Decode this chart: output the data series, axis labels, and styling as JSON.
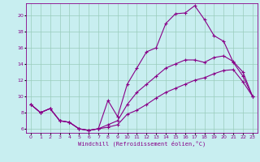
{
  "xlabel": "Windchill (Refroidissement éolien,°C)",
  "bg_color": "#c8eef0",
  "line_color": "#880088",
  "grid_color": "#99ccbb",
  "x_ticks": [
    0,
    1,
    2,
    3,
    4,
    5,
    6,
    7,
    8,
    9,
    10,
    11,
    12,
    13,
    14,
    15,
    16,
    17,
    18,
    19,
    20,
    21,
    22,
    23
  ],
  "y_ticks": [
    6,
    8,
    10,
    12,
    14,
    16,
    18,
    20
  ],
  "xlim": [
    -0.5,
    23.5
  ],
  "ylim": [
    5.5,
    21.5
  ],
  "line1_x": [
    0,
    1,
    2,
    3,
    4,
    5,
    6,
    7,
    8,
    9,
    10,
    11,
    12,
    13,
    14,
    15,
    16,
    17,
    18,
    19,
    20,
    21,
    22,
    23
  ],
  "line1_y": [
    9.0,
    8.0,
    8.5,
    7.0,
    6.8,
    6.0,
    5.8,
    6.0,
    9.5,
    7.5,
    11.5,
    13.5,
    15.5,
    16.0,
    19.0,
    20.2,
    20.3,
    21.2,
    19.5,
    17.5,
    16.8,
    14.2,
    12.5,
    10.0
  ],
  "line2_x": [
    0,
    1,
    2,
    3,
    4,
    5,
    6,
    7,
    8,
    9,
    10,
    11,
    12,
    13,
    14,
    15,
    16,
    17,
    18,
    19,
    20,
    21,
    22,
    23
  ],
  "line2_y": [
    9.0,
    8.0,
    8.5,
    7.0,
    6.8,
    6.0,
    5.8,
    6.0,
    6.5,
    7.0,
    9.0,
    10.5,
    11.5,
    12.5,
    13.5,
    14.0,
    14.5,
    14.5,
    14.2,
    14.8,
    15.0,
    14.3,
    13.0,
    10.0
  ],
  "line3_x": [
    0,
    1,
    2,
    3,
    4,
    5,
    6,
    7,
    8,
    9,
    10,
    11,
    12,
    13,
    14,
    15,
    16,
    17,
    18,
    19,
    20,
    21,
    22,
    23
  ],
  "line3_y": [
    9.0,
    8.0,
    8.5,
    7.0,
    6.8,
    6.0,
    5.8,
    6.0,
    6.2,
    6.5,
    7.8,
    8.3,
    9.0,
    9.8,
    10.5,
    11.0,
    11.5,
    12.0,
    12.3,
    12.8,
    13.2,
    13.3,
    11.8,
    10.0
  ]
}
